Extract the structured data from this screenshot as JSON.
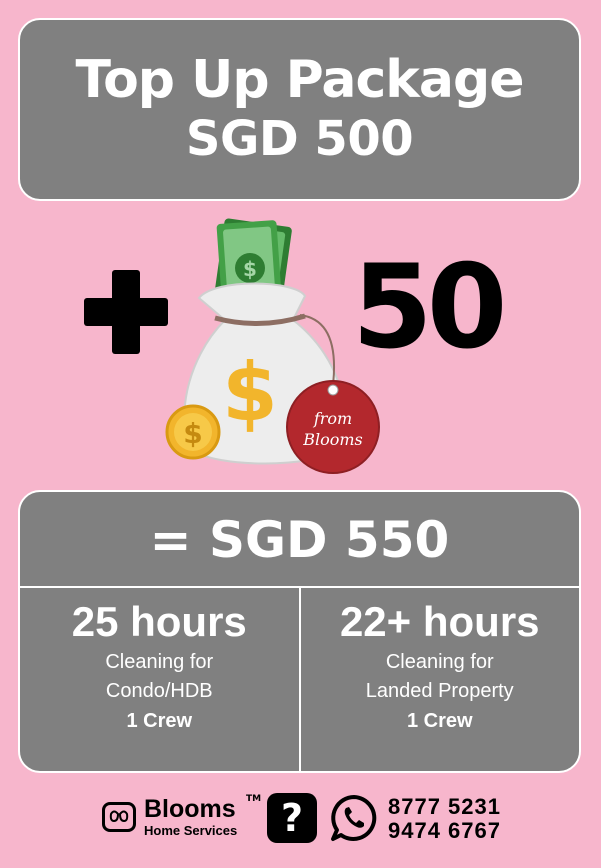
{
  "header": {
    "line1": "Top Up Package",
    "line2": "SGD 500"
  },
  "bonus": {
    "plus_symbol": "+",
    "amount": "50",
    "tag_line1": "from",
    "tag_line2": "Blooms",
    "bag_symbol": "$",
    "coin_symbol": "$",
    "note_symbol": "$"
  },
  "total": {
    "label": "= SGD 550"
  },
  "options": [
    {
      "hours": "25 hours",
      "desc_line1": "Cleaning for",
      "desc_line2": "Condo/HDB",
      "crew": "1 Crew"
    },
    {
      "hours": "22+ hours",
      "desc_line1": "Cleaning for",
      "desc_line2": "Landed Property",
      "crew": "1 Crew"
    }
  ],
  "footer": {
    "brand": "Blooms",
    "trademark": "TM",
    "brand_sub": "Home Services",
    "help_symbol": "?",
    "phone1": "8777 5231",
    "phone2": "9474 6767",
    "icons": [
      "blooms-logo-icon",
      "question-icon",
      "whatsapp-icon"
    ]
  },
  "colors": {
    "background": "#f7b6cc",
    "card": "#808080",
    "text_light": "#ffffff",
    "bag": "#ececec",
    "money_green": "#4caf50",
    "coin_gold": "#f2b52c",
    "tag_red": "#b3282d"
  }
}
